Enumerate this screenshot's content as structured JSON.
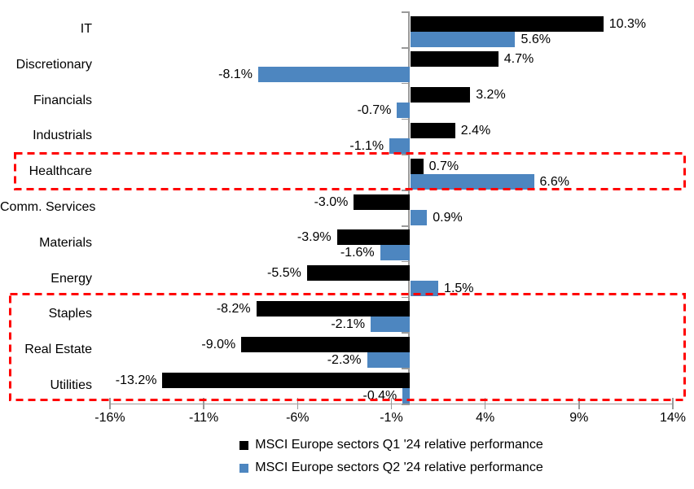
{
  "chart_data": {
    "type": "bar",
    "orientation": "horizontal",
    "title": "",
    "categories": [
      "IT",
      "Discretionary",
      "Financials",
      "Industrials",
      "Healthcare",
      "Comm. Services",
      "Materials",
      "Energy",
      "Staples",
      "Real Estate",
      "Utilities"
    ],
    "series": [
      {
        "name": "MSCI Europe sectors Q1 '24 relative performance",
        "color": "#000000",
        "values": [
          10.3,
          4.7,
          3.2,
          2.4,
          0.7,
          -3.0,
          -3.9,
          -5.5,
          -8.2,
          -9.0,
          -13.2
        ],
        "data_labels": [
          "10.3%",
          "4.7%",
          "3.2%",
          "2.4%",
          "0.7%",
          "-3.0%",
          "-3.9%",
          "-5.5%",
          "-8.2%",
          "-9.0%",
          "-13.2%"
        ]
      },
      {
        "name": "MSCI Europe sectors Q2 '24 relative performance",
        "color": "#4D86C0",
        "values": [
          5.6,
          -8.1,
          -0.7,
          -1.1,
          6.6,
          0.9,
          -1.6,
          1.5,
          -2.1,
          -2.3,
          -0.4
        ],
        "data_labels": [
          "5.6%",
          "-8.1%",
          "-0.7%",
          "-1.1%",
          "6.6%",
          "0.9%",
          "-1.6%",
          "1.5%",
          "-2.1%",
          "-2.3%",
          "-0.4%"
        ]
      }
    ],
    "x_axis": {
      "tick_labels": [
        "-16%",
        "-11%",
        "-6%",
        "-1%",
        "4%",
        "9%",
        "14%"
      ],
      "tick_values": [
        -16,
        -11,
        -6,
        -1,
        4,
        9,
        14
      ],
      "range": [
        -16,
        14
      ],
      "unit": "%"
    },
    "grid": false,
    "legend_position": "bottom",
    "axis_color": "#999999"
  },
  "highlight": {
    "color": "#FF0000",
    "style": "dashed",
    "boxes": [
      {
        "name": "healthcare-box",
        "covers": [
          "Healthcare"
        ]
      },
      {
        "name": "defensive-sectors-box",
        "covers": [
          "Staples",
          "Real Estate",
          "Utilities"
        ]
      }
    ]
  }
}
